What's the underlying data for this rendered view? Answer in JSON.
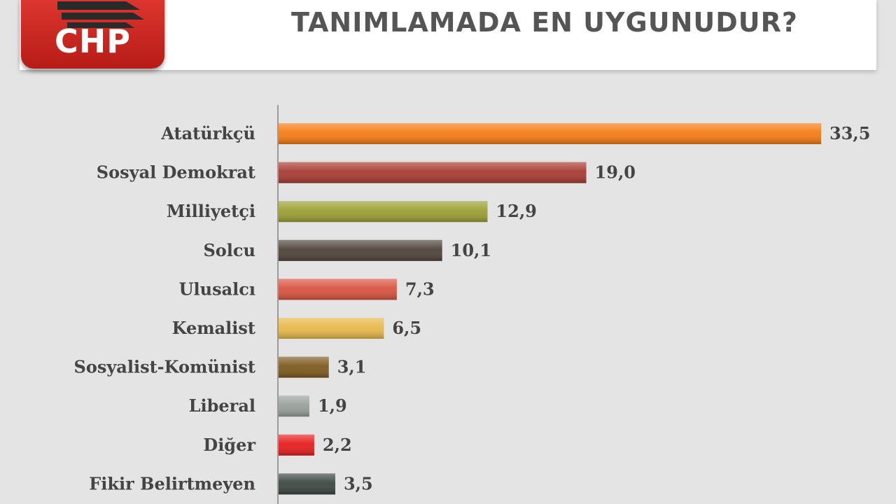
{
  "header": {
    "title": "TANIMLAMADA EN UYGUNUDUR?"
  },
  "logo": {
    "text": "CHP",
    "icon": "chp-six-arrows-icon"
  },
  "colors": {
    "background": "#e4e4e4",
    "header_bg": "#ffffff",
    "logo_red": "#d22a24"
  },
  "chart_data": {
    "type": "bar",
    "orientation": "horizontal",
    "categories": [
      "Atatürkçü",
      "Sosyal Demokrat",
      "Milliyetçi",
      "Solcu",
      "Ulusalcı",
      "Kemalist",
      "Sosyalist-Komünist",
      "Liberal",
      "Diğer",
      "Fikir Belirtmeyen"
    ],
    "values": [
      33.5,
      19.0,
      12.9,
      10.1,
      7.3,
      6.5,
      3.1,
      1.9,
      2.2,
      3.5
    ],
    "value_labels": [
      "33,5",
      "19,0",
      "12,9",
      "10,1",
      "7,3",
      "6,5",
      "3,1",
      "1,9",
      "2,2",
      "3,5"
    ],
    "bar_colors": [
      "#f57c12",
      "#a83a33",
      "#9aa032",
      "#4e433a",
      "#d9523f",
      "#e8b84a",
      "#7d5a1e",
      "#98a09b",
      "#e81c1c",
      "#3c4640"
    ],
    "xlim": [
      0,
      33.5
    ],
    "grid": false,
    "legend": "none"
  }
}
